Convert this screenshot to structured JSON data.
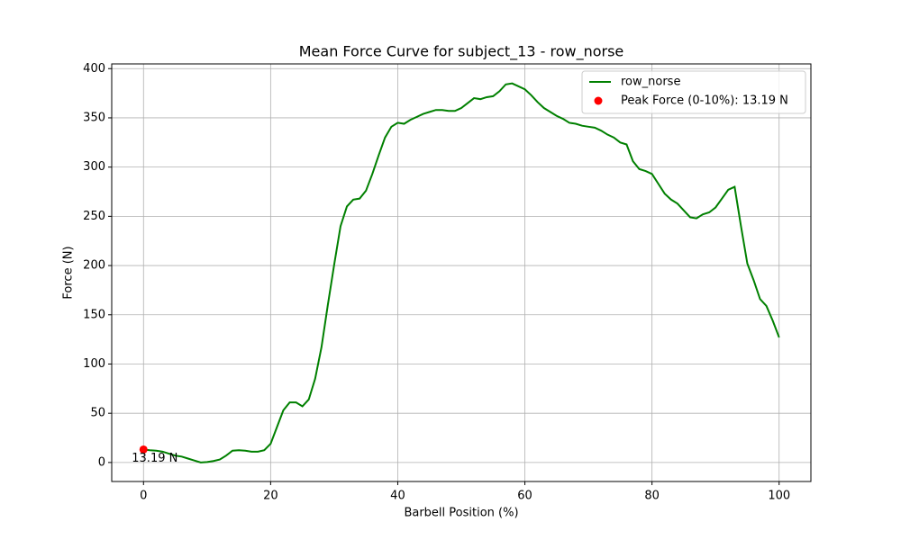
{
  "chart_data": {
    "type": "line",
    "title": "Mean Force Curve for subject_13 - row_norse",
    "xlabel": "Barbell Position (%)",
    "ylabel": "Force (N)",
    "x": [
      0,
      1,
      2,
      3,
      4,
      5,
      6,
      7,
      8,
      9,
      10,
      11,
      12,
      13,
      14,
      15,
      16,
      17,
      18,
      19,
      20,
      21,
      22,
      23,
      24,
      25,
      26,
      27,
      28,
      29,
      30,
      31,
      32,
      33,
      34,
      35,
      36,
      37,
      38,
      39,
      40,
      41,
      42,
      43,
      44,
      45,
      46,
      47,
      48,
      49,
      50,
      51,
      52,
      53,
      54,
      55,
      56,
      57,
      58,
      59,
      60,
      61,
      62,
      63,
      64,
      65,
      66,
      67,
      68,
      69,
      70,
      71,
      72,
      73,
      74,
      75,
      76,
      77,
      78,
      79,
      80,
      81,
      82,
      83,
      84,
      85,
      86,
      87,
      88,
      89,
      90,
      91,
      92,
      93,
      94,
      95,
      96,
      97,
      98,
      99,
      100
    ],
    "series": [
      {
        "name": "row_norse",
        "color": "#008000",
        "values": [
          13.19,
          12.5,
          12,
          11,
          9,
          7,
          6,
          4,
          2,
          0,
          0.5,
          1.5,
          3,
          7,
          12,
          12.5,
          12,
          11,
          11,
          12.5,
          19,
          36,
          53,
          61,
          61,
          57,
          64,
          85,
          117,
          160,
          201,
          240,
          260,
          267,
          268,
          276,
          293,
          312,
          330,
          341,
          345,
          344,
          348,
          351,
          354,
          356,
          358,
          358,
          357,
          357,
          360,
          365,
          370,
          369,
          371,
          372,
          377,
          384,
          385,
          382,
          379,
          373,
          366,
          360,
          356,
          352,
          349,
          345,
          344,
          342,
          341,
          340,
          337,
          333,
          330,
          325,
          323,
          306,
          298,
          296,
          293,
          283,
          273,
          267,
          263,
          256,
          249,
          248,
          252,
          254,
          259,
          268,
          277,
          280,
          240,
          202,
          185,
          166,
          159,
          144,
          127
        ]
      }
    ],
    "peak": {
      "name": "Peak Force (0-10%): 13.19 N",
      "color": "#ff0000",
      "x": 0,
      "y": 13.19,
      "annotation": "13.19 N"
    },
    "xlim": [
      -5,
      105
    ],
    "ylim": [
      -19.3,
      404.8
    ],
    "xticks": [
      0,
      20,
      40,
      60,
      80,
      100
    ],
    "yticks": [
      0,
      50,
      100,
      150,
      200,
      250,
      300,
      350,
      400
    ],
    "grid": true,
    "legend": "upper right"
  }
}
